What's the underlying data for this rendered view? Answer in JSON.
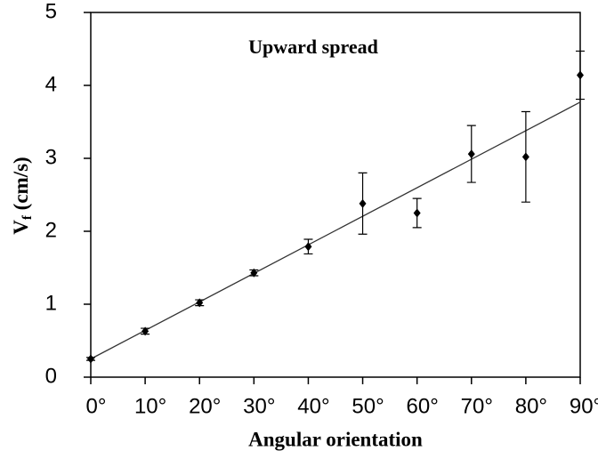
{
  "chart_data": {
    "type": "scatter",
    "title": "Upward spread",
    "xlabel": "Angular orientation",
    "ylabel_parts": [
      "V",
      "f",
      " (cm/s)"
    ],
    "x": [
      0,
      10,
      20,
      30,
      40,
      50,
      60,
      70,
      80,
      90
    ],
    "series": [
      {
        "color": "#000000",
        "values": [
          0.25,
          0.63,
          1.02,
          1.43,
          1.79,
          2.38,
          2.25,
          3.06,
          3.02,
          4.14
        ],
        "errors": [
          0.02,
          0.04,
          0.04,
          0.04,
          0.1,
          0.42,
          0.2,
          0.39,
          0.62,
          0.33
        ]
      }
    ],
    "trendline": {
      "x": [
        0,
        90
      ],
      "y": [
        0.25,
        3.77
      ],
      "color": "#333333"
    },
    "xlim": [
      0,
      90
    ],
    "ylim": [
      0,
      5
    ],
    "xticks": [
      {
        "value": 0,
        "label": "0°"
      },
      {
        "value": 10,
        "label": "10°"
      },
      {
        "value": 20,
        "label": "20°"
      },
      {
        "value": 30,
        "label": "30°"
      },
      {
        "value": 40,
        "label": "40°"
      },
      {
        "value": 50,
        "label": "50°"
      },
      {
        "value": 60,
        "label": "60°"
      },
      {
        "value": 70,
        "label": "70°"
      },
      {
        "value": 80,
        "label": "80°"
      },
      {
        "value": 90,
        "label": "90°"
      }
    ],
    "yticks": [
      0,
      1,
      2,
      3,
      4,
      5
    ],
    "grid": false
  }
}
